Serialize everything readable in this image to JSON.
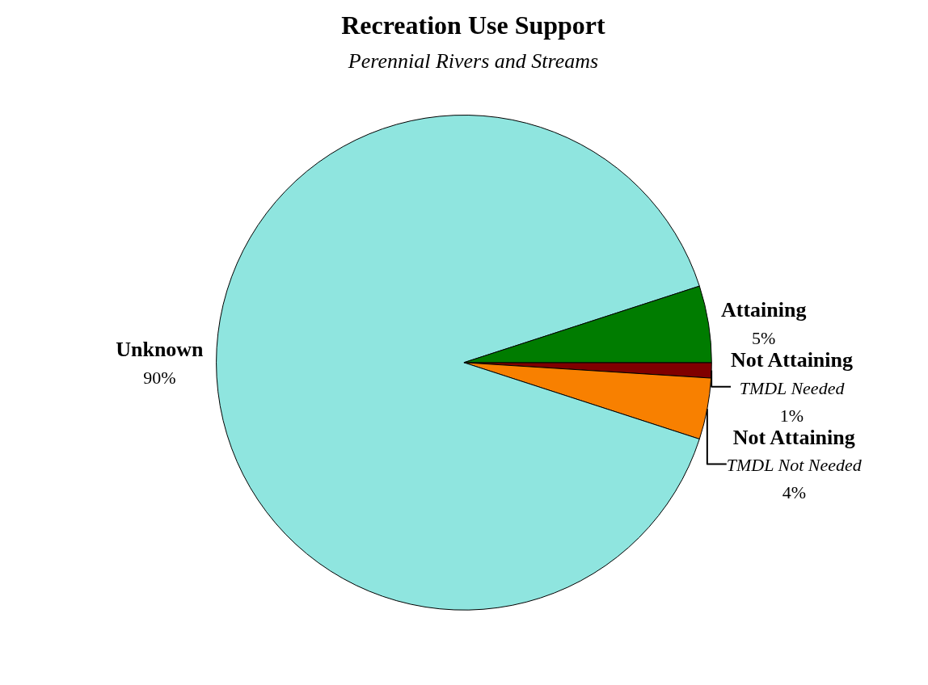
{
  "chart_data": {
    "type": "pie",
    "title": "Recreation Use Support",
    "subtitle": "Perennial Rivers and Streams",
    "categories": [
      "Not Attaining\nTMDL Needed",
      "Not Attaining\nTMDL Not Needed",
      "Unknown",
      "Attaining"
    ],
    "values": [
      1,
      4,
      90,
      5
    ],
    "value_labels": [
      "1%",
      "4%",
      "90%",
      "5%"
    ],
    "colors": [
      "#800000",
      "#f88000",
      "#8fe5df",
      "#007c00"
    ],
    "legend": false
  }
}
